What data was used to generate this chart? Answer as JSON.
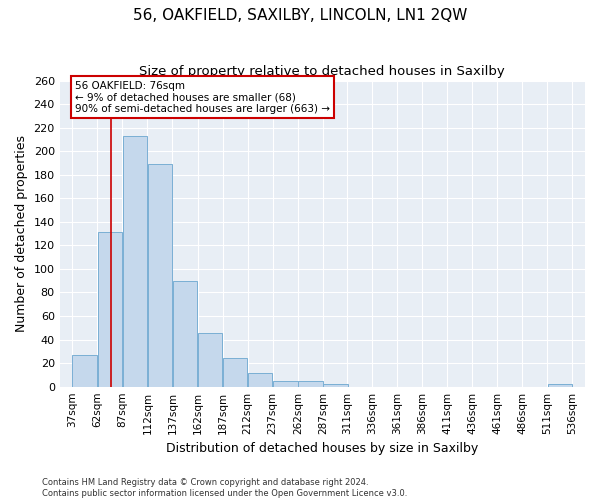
{
  "title": "56, OAKFIELD, SAXILBY, LINCOLN, LN1 2QW",
  "subtitle": "Size of property relative to detached houses in Saxilby",
  "xlabel": "Distribution of detached houses by size in Saxilby",
  "ylabel": "Number of detached properties",
  "bar_values": [
    27,
    131,
    213,
    189,
    90,
    46,
    24,
    12,
    5,
    5,
    2,
    0,
    0,
    0,
    0,
    0,
    0,
    0,
    0,
    2
  ],
  "bin_edges": [
    37,
    62,
    87,
    112,
    137,
    162,
    187,
    212,
    237,
    262,
    287,
    311,
    336,
    361,
    386,
    411,
    436,
    461,
    486,
    511,
    536
  ],
  "x_tick_labels": [
    "37sqm",
    "62sqm",
    "87sqm",
    "112sqm",
    "137sqm",
    "162sqm",
    "187sqm",
    "212sqm",
    "237sqm",
    "262sqm",
    "287sqm",
    "311sqm",
    "336sqm",
    "361sqm",
    "386sqm",
    "411sqm",
    "436sqm",
    "461sqm",
    "486sqm",
    "511sqm",
    "536sqm"
  ],
  "bar_color": "#c5d8ec",
  "bar_edge_color": "#7aafd4",
  "red_line_x": 76,
  "ylim": [
    0,
    260
  ],
  "yticks": [
    0,
    20,
    40,
    60,
    80,
    100,
    120,
    140,
    160,
    180,
    200,
    220,
    240,
    260
  ],
  "annotation_text": "56 OAKFIELD: 76sqm\n← 9% of detached houses are smaller (68)\n90% of semi-detached houses are larger (663) →",
  "annotation_box_color": "#ffffff",
  "annotation_box_edge": "#cc0000",
  "footer_line1": "Contains HM Land Registry data © Crown copyright and database right 2024.",
  "footer_line2": "Contains public sector information licensed under the Open Government Licence v3.0.",
  "background_color": "#e8eef5",
  "grid_color": "#ffffff",
  "title_fontsize": 11,
  "subtitle_fontsize": 9.5,
  "xlabel_fontsize": 9,
  "ylabel_fontsize": 9,
  "tick_fontsize": 8,
  "annotation_fontsize": 7.5,
  "footer_fontsize": 6
}
